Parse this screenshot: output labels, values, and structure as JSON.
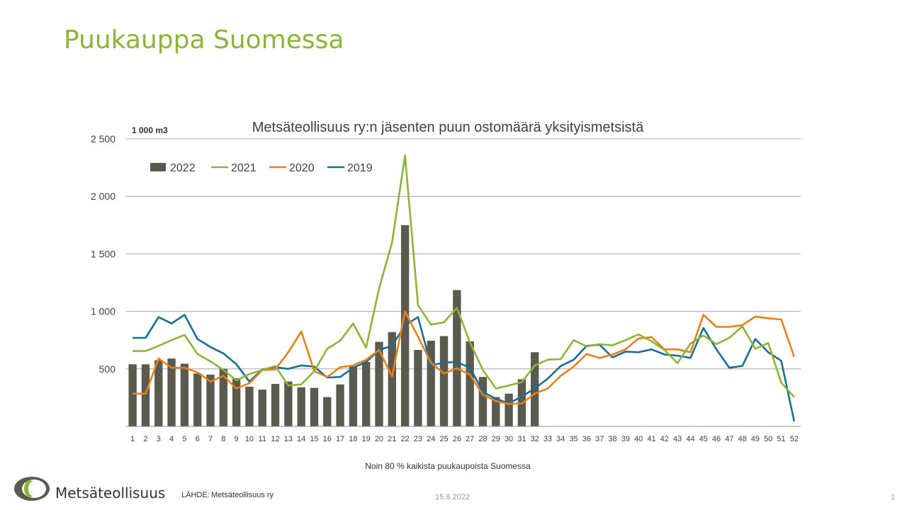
{
  "slide": {
    "title": "Puukauppa Suomessa",
    "source_label": "LÄHDE:",
    "source_value": "Metsäteollisuus ry",
    "date": "15.8.2022",
    "page_number": "1",
    "brand": "Metsäteollisuus"
  },
  "colors": {
    "title": "#8db33a",
    "bar_2022": "#5a5a4e",
    "line_2021": "#8db33a",
    "line_2020": "#e8801a",
    "line_2019": "#1a6e96",
    "grid": "#a6a6a6"
  },
  "chart_data": {
    "type": "bar",
    "title": "Metsäteollisuus ry:n jäsenten puun ostomäärä yksityismetsistä",
    "unit_label": "1 000 m3",
    "xlabel": "Noin 80 % kaikista puukaupoista Suomessa",
    "ylim": [
      0,
      2500
    ],
    "yticks": [
      {
        "value": 500,
        "label": "500"
      },
      {
        "value": 1000,
        "label": "1 000"
      },
      {
        "value": 1500,
        "label": "1 500"
      },
      {
        "value": 2000,
        "label": "2 000"
      },
      {
        "value": 2500,
        "label": "2 500"
      }
    ],
    "grid": true,
    "legend_position": "top-left",
    "categories": [
      "1",
      "2",
      "3",
      "4",
      "5",
      "6",
      "7",
      "8",
      "9",
      "10",
      "11",
      "12",
      "13",
      "14",
      "15",
      "16",
      "17",
      "18",
      "19",
      "20",
      "21",
      "22",
      "23",
      "24",
      "25",
      "26",
      "27",
      "28",
      "29",
      "30",
      "31",
      "32",
      "33",
      "34",
      "35",
      "36",
      "37",
      "38",
      "39",
      "40",
      "41",
      "42",
      "43",
      "44",
      "45",
      "46",
      "47",
      "48",
      "49",
      "50",
      "51",
      "52"
    ],
    "series": [
      {
        "name": "2022",
        "type": "bar",
        "values": [
          540,
          540,
          575,
          590,
          545,
          460,
          450,
          500,
          420,
          345,
          320,
          370,
          390,
          340,
          335,
          255,
          365,
          520,
          560,
          735,
          820,
          1750,
          665,
          745,
          785,
          1185,
          740,
          430,
          255,
          285,
          410,
          645,
          null,
          null,
          null,
          null,
          null,
          null,
          null,
          null,
          null,
          null,
          null,
          null,
          null,
          null,
          null,
          null,
          null,
          null,
          null,
          null
        ]
      },
      {
        "name": "2021",
        "type": "line",
        "values": [
          655,
          655,
          700,
          750,
          795,
          630,
          565,
          490,
          400,
          455,
          490,
          525,
          355,
          365,
          480,
          675,
          745,
          895,
          685,
          1200,
          1600,
          2355,
          1055,
          885,
          905,
          1030,
          730,
          490,
          330,
          355,
          385,
          530,
          580,
          585,
          750,
          695,
          715,
          705,
          750,
          800,
          740,
          665,
          550,
          720,
          790,
          715,
          770,
          870,
          675,
          725,
          380,
          255
        ]
      },
      {
        "name": "2020",
        "type": "line",
        "values": [
          285,
          285,
          590,
          510,
          510,
          470,
          390,
          440,
          330,
          375,
          490,
          495,
          645,
          825,
          480,
          430,
          515,
          530,
          580,
          665,
          435,
          1000,
          780,
          555,
          460,
          505,
          450,
          275,
          220,
          195,
          200,
          285,
          330,
          440,
          520,
          630,
          595,
          625,
          670,
          765,
          775,
          670,
          670,
          645,
          970,
          865,
          865,
          880,
          955,
          940,
          930,
          605
        ]
      },
      {
        "name": "2019",
        "type": "line",
        "values": [
          770,
          770,
          950,
          895,
          970,
          760,
          690,
          635,
          540,
          390,
          495,
          515,
          500,
          530,
          520,
          425,
          430,
          510,
          560,
          665,
          700,
          880,
          950,
          530,
          555,
          560,
          510,
          300,
          240,
          200,
          260,
          330,
          415,
          525,
          580,
          700,
          710,
          600,
          650,
          645,
          670,
          625,
          615,
          595,
          855,
          670,
          510,
          525,
          760,
          645,
          570,
          45
        ]
      }
    ]
  }
}
